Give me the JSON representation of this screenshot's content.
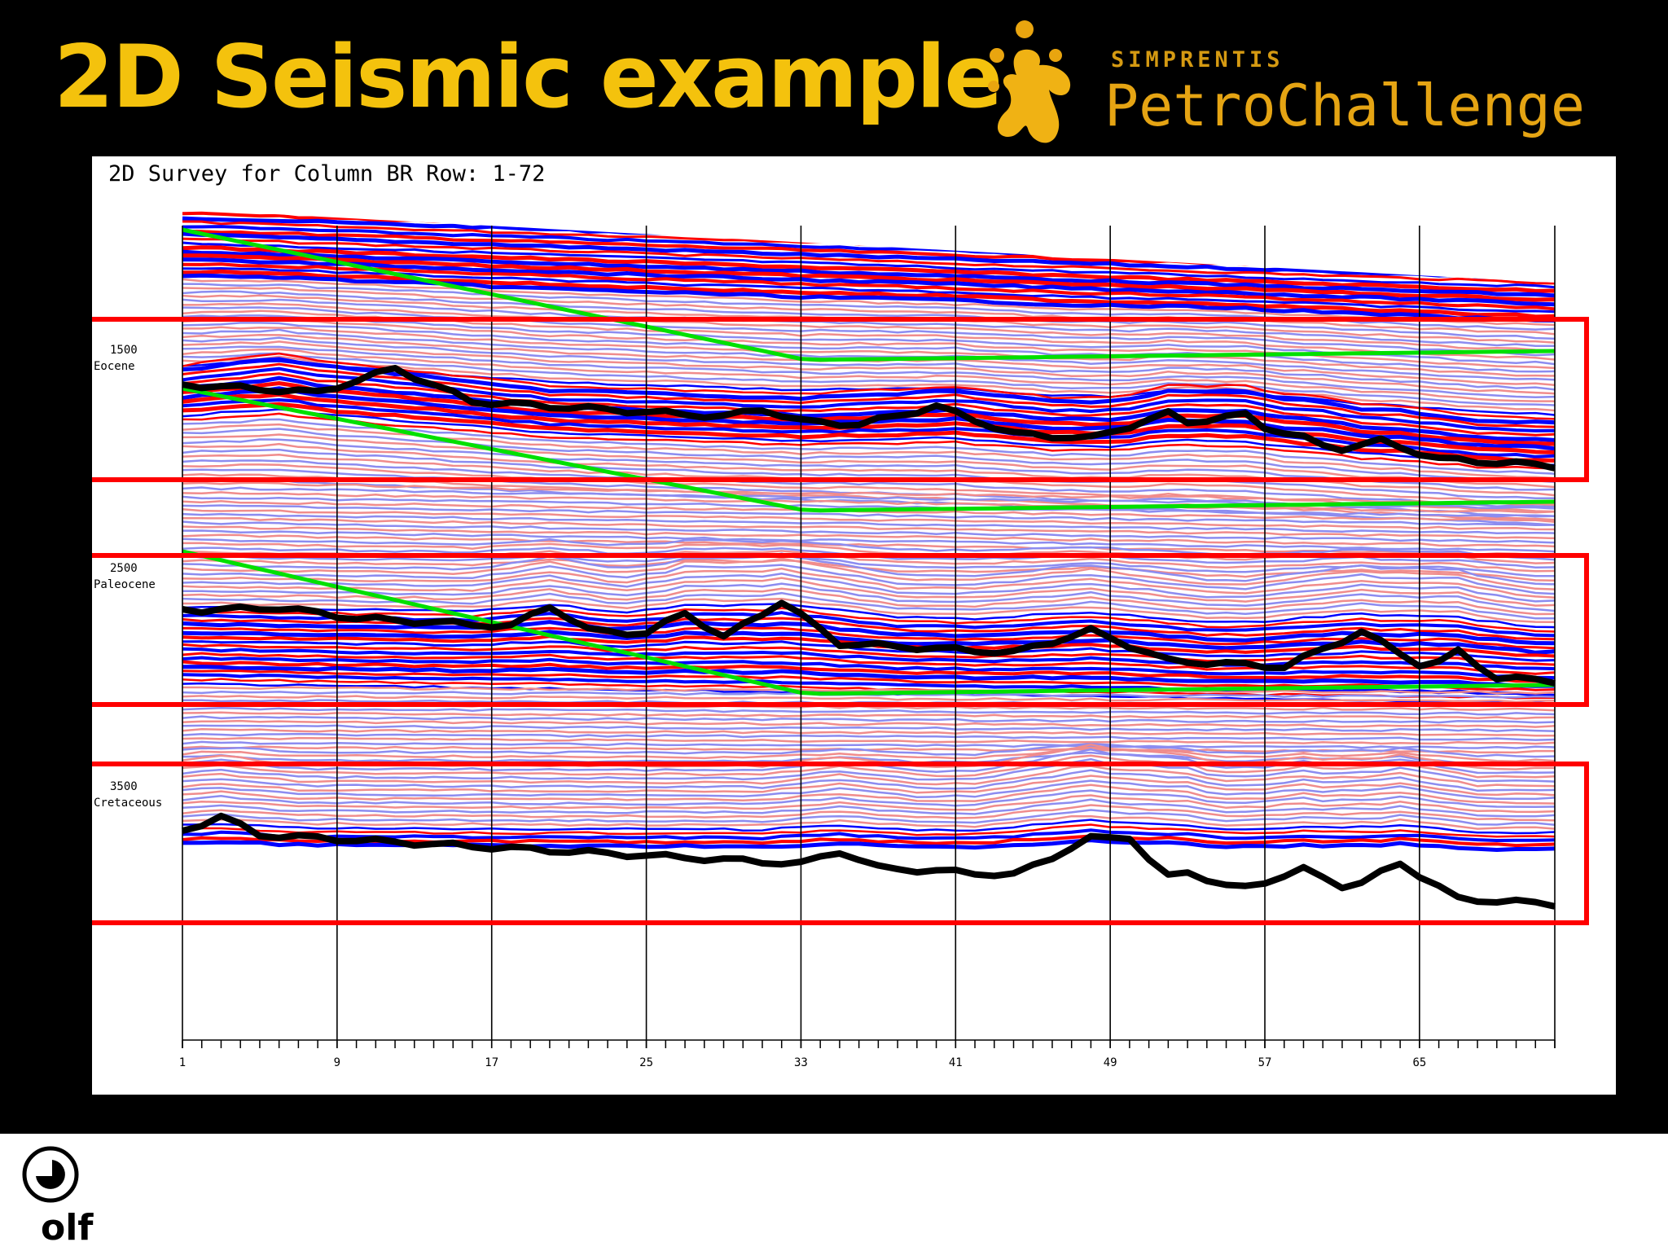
{
  "slide": {
    "title": "2D Seismic example",
    "brand": {
      "top": "SIMPRENTIS",
      "main": "PetroChallenge",
      "color": "#f4c20d",
      "icon": "splash-figure-icon"
    },
    "footer_logo": {
      "text": "olf",
      "icon": "olf-logo-icon"
    }
  },
  "figure": {
    "title": "2D Survey for Column BR Row: 1-72",
    "x_ticks": [
      "1",
      "9",
      "17",
      "25",
      "33",
      "41",
      "49",
      "57",
      "65"
    ],
    "horizon_labels": [
      {
        "depth": "1500",
        "name": "Eocene"
      },
      {
        "depth": "2500",
        "name": "Paleocene"
      },
      {
        "depth": "3500",
        "name": "Cretaceous"
      }
    ],
    "colors": {
      "positive": "#ff0000",
      "negative": "#0000ff",
      "light_positive": "#f08c8c",
      "light_negative": "#8c8cf0",
      "marker": "#00e000",
      "horizon": "#000000",
      "highlight_box": "#ff0000"
    }
  }
}
